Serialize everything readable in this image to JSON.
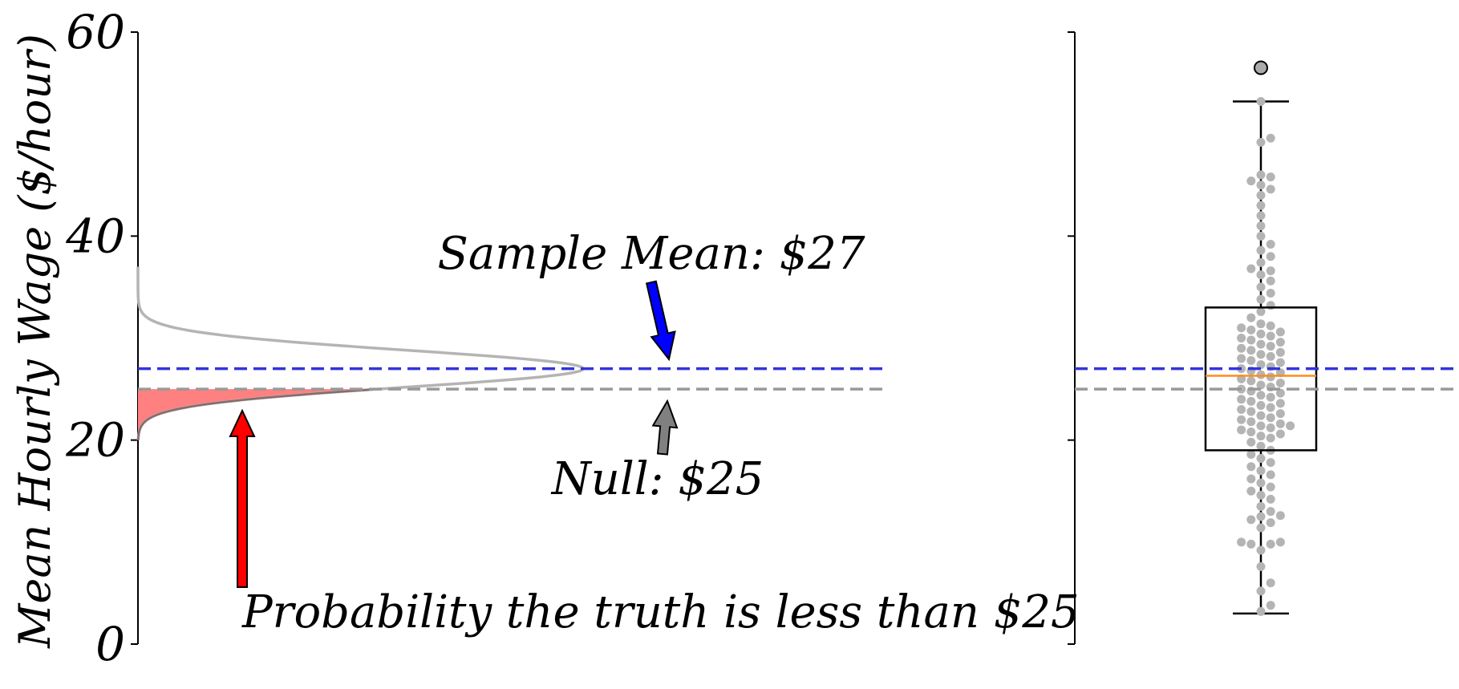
{
  "colors": {
    "sample_mean_line": "#3333dd",
    "null_line": "#999999",
    "density_curve": "#b4b4b4",
    "tail_fill": "#ff8080",
    "red_arrow": "#ff0000",
    "blue_arrow": "#0000ff",
    "gray_arrow": "#808080",
    "swarm_points": "#b4b4b4",
    "median_line": "#ff8c1a",
    "outlier_fill": "#aaaaaa"
  },
  "chart_data": [
    {
      "type": "area",
      "title": "",
      "ylabel": "Mean Hourly Wage ($/hour)",
      "xlabel": "",
      "ylim": [
        0,
        60
      ],
      "yticks": [
        0,
        20,
        40,
        60
      ],
      "ytick_labels": [
        "0",
        "20",
        "40",
        "60"
      ],
      "grid": false,
      "distribution": {
        "kind": "normal",
        "mean": 27,
        "sd": 1.8,
        "orientation": "horizontal"
      },
      "shaded_region": {
        "below": 25
      },
      "reference_lines": [
        {
          "name": "Sample Mean",
          "y": 27,
          "style": "dashed"
        },
        {
          "name": "Null",
          "y": 25,
          "style": "dashed"
        }
      ],
      "annotations": [
        {
          "id": "sample_mean",
          "text": "Sample Mean: $27"
        },
        {
          "id": "null",
          "text": "Null: $25"
        },
        {
          "id": "probability",
          "text": "Probability the truth is less than $25"
        }
      ]
    },
    {
      "type": "scatter",
      "subtype": "boxplot-with-swarm",
      "ylim": [
        0,
        60
      ],
      "yticks": [
        0,
        20,
        40,
        60
      ],
      "ytick_labels": [],
      "box": {
        "whisker_low": 3,
        "q1": 19,
        "median": 26.3,
        "q3": 33,
        "whisker_high": 53.2,
        "outliers": [
          56.5
        ]
      },
      "reference_lines": [
        {
          "y": 27,
          "style": "dashed"
        },
        {
          "y": 25,
          "style": "dashed"
        }
      ],
      "points": [
        3.2,
        3.8,
        5.2,
        6.0,
        7.6,
        9.2,
        9.8,
        9.8,
        10.0,
        10.0,
        11.4,
        11.9,
        12.2,
        12.5,
        12.6,
        13.0,
        13.5,
        14.2,
        14.6,
        15.0,
        15.4,
        15.8,
        16.2,
        16.6,
        17.0,
        17.4,
        17.8,
        18.2,
        18.6,
        19.0,
        19.4,
        19.8,
        20.2,
        20.4,
        20.6,
        20.8,
        21.0,
        21.2,
        21.4,
        21.4,
        21.6,
        21.8,
        22.0,
        22.2,
        22.4,
        22.6,
        22.8,
        23.0,
        23.2,
        23.4,
        23.6,
        23.8,
        24.0,
        24.2,
        24.4,
        24.6,
        24.8,
        25.0,
        25.2,
        25.4,
        25.6,
        25.8,
        26.0,
        26.2,
        26.4,
        26.6,
        26.8,
        27.0,
        27.2,
        27.4,
        27.6,
        27.8,
        28.0,
        28.2,
        28.4,
        28.6,
        28.8,
        29.0,
        29.2,
        29.4,
        29.6,
        29.8,
        30.0,
        30.2,
        30.4,
        30.6,
        30.8,
        31.0,
        31.2,
        31.4,
        32.0,
        32.6,
        33.2,
        33.8,
        34.4,
        35.0,
        35.6,
        36.2,
        36.6,
        36.8,
        37.4,
        38.0,
        38.6,
        39.2,
        40.0,
        41.0,
        42.0,
        43.0,
        44.0,
        44.6,
        45.0,
        45.4,
        45.8,
        46.0,
        49.2,
        49.6,
        53.2
      ]
    }
  ]
}
